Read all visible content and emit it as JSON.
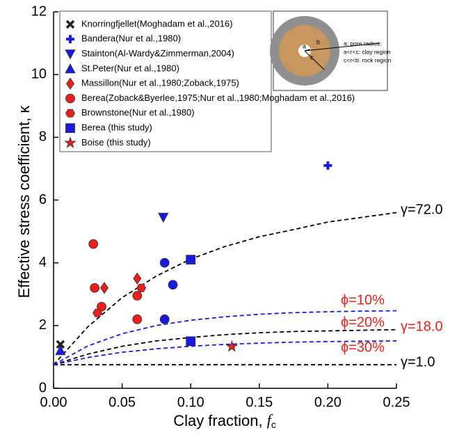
{
  "chart_data": {
    "type": "scatter",
    "ylabel": "Effective stress coefficient, κ",
    "xlabel": {
      "text": "Clay fraction, ",
      "var": "f",
      "sub": "c"
    },
    "xlim": [
      0,
      0.25
    ],
    "ylim": [
      0,
      12
    ],
    "xticks": [
      {
        "value": 0,
        "label": "0.00"
      },
      {
        "value": 0.05,
        "label": "0.05"
      },
      {
        "value": 0.1,
        "label": "0.10"
      },
      {
        "value": 0.15,
        "label": "0.15"
      },
      {
        "value": 0.2,
        "label": "0.20"
      },
      {
        "value": 0.25,
        "label": "0.25"
      }
    ],
    "yticks": [
      0,
      2,
      4,
      6,
      8,
      10,
      12
    ],
    "series": [
      {
        "name": "Knorringfjellet(Moghadam et al.,2016)",
        "marker": "x",
        "color": "#222222",
        "x": [
          0.005
        ],
        "values": [
          1.4
        ]
      },
      {
        "name": "Bandera(Nur et al.,1980)",
        "marker": "plus",
        "color": "#1a1adc",
        "x": [
          0.2
        ],
        "values": [
          7.1
        ]
      },
      {
        "name": "Stainton(Al-Wardy&Zimmerman,2004)",
        "marker": "tri-down",
        "color": "#1a1adc",
        "x": [
          0.08
        ],
        "values": [
          5.45
        ]
      },
      {
        "name": "St.Peter(Nur et al.,1980)",
        "marker": "tri-up",
        "color": "#1a1adc",
        "x": [
          0.005
        ],
        "values": [
          1.2
        ]
      },
      {
        "name": "Massillon(Nur et al.,1980;Zoback,1975)",
        "marker": "diamond",
        "color": "#e8201c",
        "x": [
          0.037,
          0.061
        ],
        "values": [
          3.2,
          3.5
        ]
      },
      {
        "name": "Berea(Zoback&Byerlee,1975;Nur et al.,1980;Moghadam et al.,2016)",
        "marker": "circle",
        "color": "#e8201c",
        "x": [
          0.029,
          0.03,
          0.035,
          0.061,
          0.061,
          0.081,
          0.087,
          0.081
        ],
        "values": [
          4.6,
          3.2,
          2.6,
          2.95,
          2.2,
          4.0,
          3.3,
          2.2
        ],
        "colors": [
          "#e8201c",
          "#e8201c",
          "#e8201c",
          "#e8201c",
          "#e8201c",
          "#1a1adc",
          "#1a1adc",
          "#1a1adc"
        ]
      },
      {
        "name": "Brownstone(Nur et al.,1980)",
        "marker": "hexagon",
        "color": "#e8201c",
        "x": [
          0.032,
          0.064
        ],
        "values": [
          2.4,
          3.2
        ]
      },
      {
        "name": "Berea (this study)",
        "marker": "square",
        "color": "#1a1adc",
        "x": [
          0.1,
          0.1
        ],
        "values": [
          4.1,
          1.5
        ]
      },
      {
        "name": "Boise (this study)",
        "marker": "star",
        "color": "#e8201c",
        "x": [
          0.13
        ],
        "values": [
          1.33
        ]
      }
    ],
    "curves": [
      {
        "color": "#000000",
        "x": [
          0,
          0.025,
          0.05,
          0.075,
          0.1,
          0.125,
          0.15,
          0.175,
          0.2,
          0.225,
          0.25
        ],
        "values": [
          0.75,
          1.96,
          2.89,
          3.58,
          4.12,
          4.52,
          4.83,
          5.06,
          5.3,
          5.45,
          5.6
        ]
      },
      {
        "color": "#000000",
        "x": [
          0,
          0.025,
          0.05,
          0.075,
          0.1,
          0.125,
          0.15,
          0.175,
          0.2,
          0.225,
          0.25
        ],
        "values": [
          0.75,
          1.09,
          1.34,
          1.51,
          1.62,
          1.71,
          1.77,
          1.81,
          1.83,
          1.85,
          1.87
        ]
      },
      {
        "color": "#000000",
        "x": [
          0,
          0.25
        ],
        "values": [
          0.75,
          0.75
        ]
      },
      {
        "color": "#1a1adc",
        "x": [
          0,
          0.025,
          0.05,
          0.075,
          0.1,
          0.125,
          0.15,
          0.175,
          0.2,
          0.225,
          0.25
        ],
        "values": [
          0.75,
          1.35,
          1.74,
          2.0,
          2.17,
          2.28,
          2.36,
          2.41,
          2.44,
          2.46,
          2.47
        ]
      },
      {
        "color": "#1a1adc",
        "x": [
          0,
          0.025,
          0.05,
          0.075,
          0.1,
          0.125,
          0.15,
          0.175,
          0.2,
          0.225,
          0.25
        ],
        "values": [
          0.75,
          0.98,
          1.15,
          1.26,
          1.34,
          1.4,
          1.44,
          1.47,
          1.49,
          1.5,
          1.51
        ]
      }
    ],
    "annotations": [
      {
        "text": "γ=72.0",
        "color": "#000000"
      },
      {
        "text": "γ=18.0",
        "color": "#e8201c"
      },
      {
        "text": "γ=1.0",
        "color": "#000000"
      },
      {
        "text": "ϕ=10%",
        "color": "#e8201c"
      },
      {
        "text": "ϕ=20%",
        "color": "#e8201c"
      },
      {
        "text": "ϕ=30%",
        "color": "#e8201c"
      }
    ],
    "inset": {
      "a": "a",
      "b": "b",
      "c": "c",
      "lines": [
        "a: pore radius;",
        "a<r<c: clay region",
        "c<r<b: rock region"
      ]
    }
  }
}
